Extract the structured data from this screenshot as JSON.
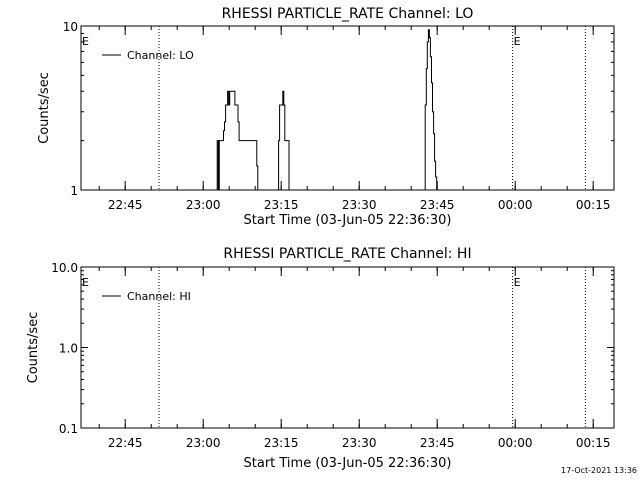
{
  "footer": {
    "timestamp": "17-Oct-2021 13:36"
  },
  "chart_data": [
    {
      "type": "line",
      "title": "RHESSI PARTICLE_RATE Channel: LO",
      "xlabel": "Start Time (03-Jun-05 22:36:30)",
      "ylabel": "Counts/sec",
      "y_scale": "log",
      "ylim": [
        1,
        10
      ],
      "xlim": [
        "22:36:30",
        "00:19:00"
      ],
      "x_ticks": [
        "22:45",
        "23:00",
        "23:15",
        "23:30",
        "23:45",
        "00:00",
        "00:15"
      ],
      "y_ticks": [
        "1",
        "10"
      ],
      "legend_position": "top-left",
      "vertical_markers": [
        {
          "time": "22:51:30",
          "label": ""
        },
        {
          "time": "23:59:30",
          "label": "E"
        },
        {
          "time": "00:13:30",
          "label": ""
        }
      ],
      "left_marker_label": "E",
      "series": [
        {
          "name": "Channel: LO",
          "x": [
            "23:02:30",
            "23:02:42",
            "23:02:54",
            "23:03:06",
            "23:03:18",
            "23:03:30",
            "23:03:42",
            "23:03:54",
            "23:04:06",
            "23:04:18",
            "23:04:30",
            "23:04:42",
            "23:04:54",
            "23:05:06",
            "23:05:18",
            "23:05:30",
            "23:05:42",
            "23:05:54",
            "23:06:06",
            "23:06:18",
            "23:06:30",
            "23:06:42",
            "23:06:54",
            "23:07:06",
            "23:07:18",
            "23:07:30",
            "23:07:42",
            "23:07:54",
            "23:08:06",
            "23:08:18",
            "23:08:30",
            "23:08:42",
            "23:08:54",
            "23:09:06",
            "23:09:18",
            "23:09:30",
            "23:09:42",
            "23:09:54",
            "23:10:06",
            "23:10:18",
            "23:10:30",
            "23:14:18",
            "23:14:30",
            "23:14:42",
            "23:14:54",
            "23:15:06",
            "23:15:18",
            "23:15:30",
            "23:15:42",
            "23:15:54",
            "23:16:06",
            "23:16:18",
            "23:16:30",
            "23:42:30",
            "23:42:42",
            "23:42:54",
            "23:43:06",
            "23:43:18",
            "23:43:30",
            "23:43:42",
            "23:43:54",
            "23:44:06",
            "23:44:18",
            "23:44:30",
            "23:44:42",
            "23:44:54"
          ],
          "y": [
            1,
            2,
            1,
            2,
            2,
            2,
            2,
            2.3,
            2.6,
            3.3,
            3.3,
            4,
            3.3,
            4,
            4,
            4,
            4,
            4,
            3.3,
            3.3,
            3.3,
            2.6,
            2,
            2,
            2,
            2,
            2,
            2,
            2,
            2,
            2,
            2,
            2,
            2,
            2,
            2,
            2,
            2,
            2,
            1.4,
            1,
            1,
            2,
            3.3,
            3.3,
            3.3,
            4,
            3.3,
            2,
            2,
            2,
            2,
            1,
            1,
            3.3,
            5.5,
            8,
            9.5,
            8.5,
            6.5,
            4.5,
            3,
            2.2,
            1.5,
            1.2,
            1
          ]
        }
      ]
    },
    {
      "type": "line",
      "title": "RHESSI PARTICLE_RATE Channel: HI",
      "xlabel": "Start Time (03-Jun-05 22:36:30)",
      "ylabel": "Counts/sec",
      "y_scale": "log",
      "ylim": [
        0.1,
        10
      ],
      "xlim": [
        "22:36:30",
        "00:19:00"
      ],
      "x_ticks": [
        "22:45",
        "23:00",
        "23:15",
        "23:30",
        "23:45",
        "00:00",
        "00:15"
      ],
      "y_ticks": [
        "0.1",
        "1.0",
        "10.0"
      ],
      "legend_position": "top-left",
      "vertical_markers": [
        {
          "time": "22:51:30",
          "label": ""
        },
        {
          "time": "23:59:30",
          "label": "E"
        },
        {
          "time": "00:13:30",
          "label": ""
        }
      ],
      "left_marker_label": "E",
      "series": [
        {
          "name": "Channel: HI",
          "x": [],
          "y": []
        }
      ]
    }
  ]
}
